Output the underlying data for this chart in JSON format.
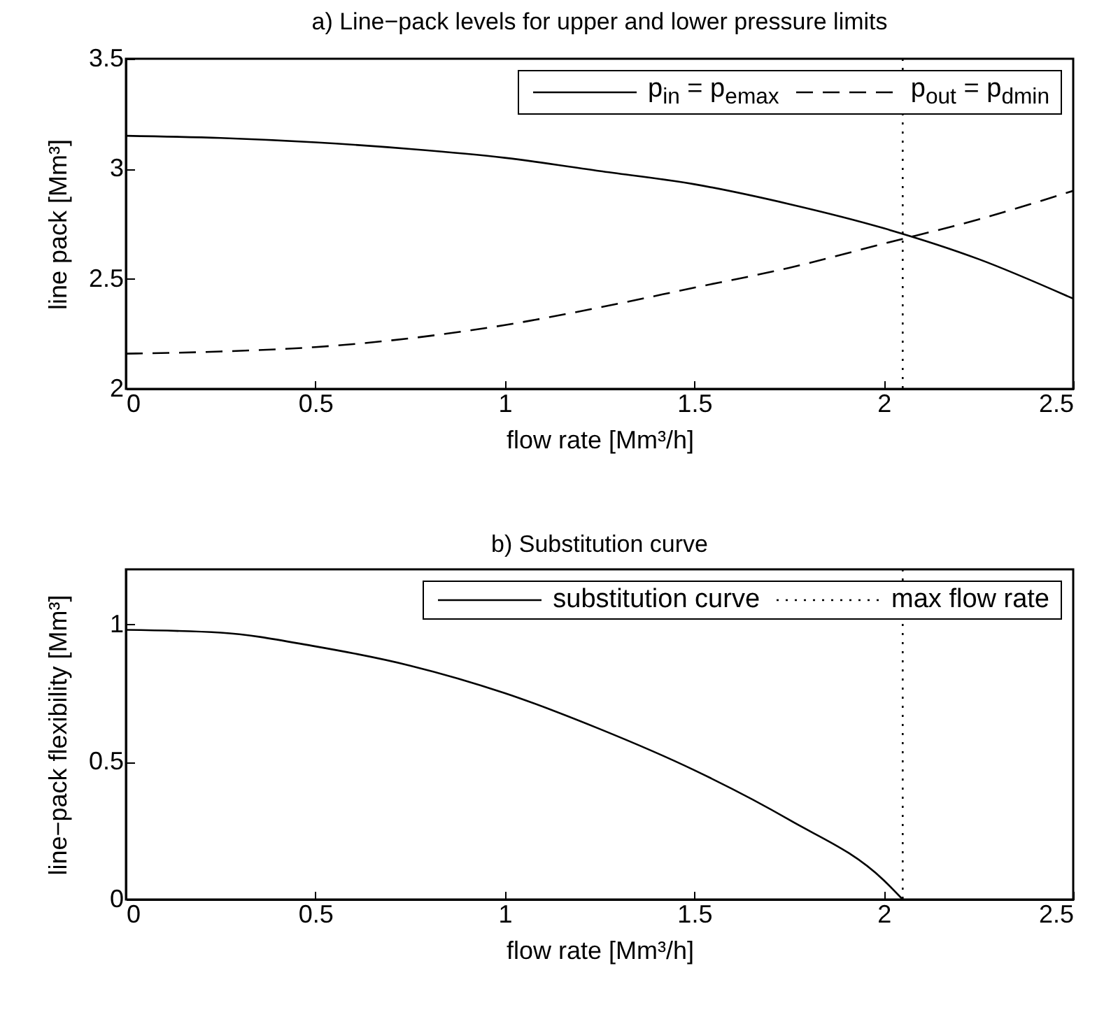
{
  "chart_data": [
    {
      "type": "line",
      "title": "a) Line−pack levels for upper and lower pressure limits",
      "xlabel": "flow rate [Mm³/h]",
      "ylabel": "line pack [Mm³]",
      "x": [
        0,
        0.25,
        0.5,
        0.75,
        1,
        1.25,
        1.5,
        1.75,
        2,
        2.25,
        2.5
      ],
      "series": [
        {
          "name": "p$_{in}$ = p$_{emax}$",
          "color": "#000000",
          "line_style": "solid",
          "values": [
            3.15,
            3.14,
            3.12,
            3.09,
            3.05,
            2.99,
            2.93,
            2.84,
            2.73,
            2.59,
            2.41
          ]
        },
        {
          "name": "p$_{out}$ = p$_{dmin}$",
          "color": "#000000",
          "line_style": "dashed",
          "values": [
            2.16,
            2.17,
            2.19,
            2.23,
            2.29,
            2.37,
            2.46,
            2.55,
            2.66,
            2.77,
            2.9
          ]
        }
      ],
      "xlim": [
        0,
        2.5
      ],
      "xticks": [
        0,
        0.5,
        1,
        1.5,
        2,
        2.5
      ],
      "ylim": [
        2,
        3.5
      ],
      "yticks": [
        2,
        2.5,
        3,
        3.5
      ],
      "ref_lines": [
        {
          "axis": "x",
          "value": 2.05,
          "color": "#000000",
          "line_style": "dotted"
        }
      ],
      "legend": "top right"
    },
    {
      "type": "line",
      "title": "b) Substitution curve",
      "xlabel": "flow rate [Mm³/h]",
      "ylabel": "line−pack flexibility [Mm³]",
      "series": [
        {
          "name": "substitution curve",
          "color": "#000000",
          "line_style": "solid",
          "x": [
            0,
            0.25,
            0.5,
            0.75,
            1,
            1.25,
            1.5,
            1.75,
            2,
            2.05
          ],
          "values": [
            0.98,
            0.97,
            0.92,
            0.85,
            0.75,
            0.62,
            0.47,
            0.29,
            0.07,
            0
          ]
        }
      ],
      "xlim": [
        0,
        2.5
      ],
      "xticks": [
        0,
        0.5,
        1,
        1.5,
        2,
        2.5
      ],
      "ylim": [
        0,
        1.2
      ],
      "yticks": [
        0,
        0.5,
        1
      ],
      "ref_lines": [
        {
          "axis": "x",
          "value": 2.05,
          "color": "#000000",
          "line_style": "dotted",
          "label": "max flow rate"
        }
      ],
      "legend": "top right"
    }
  ]
}
